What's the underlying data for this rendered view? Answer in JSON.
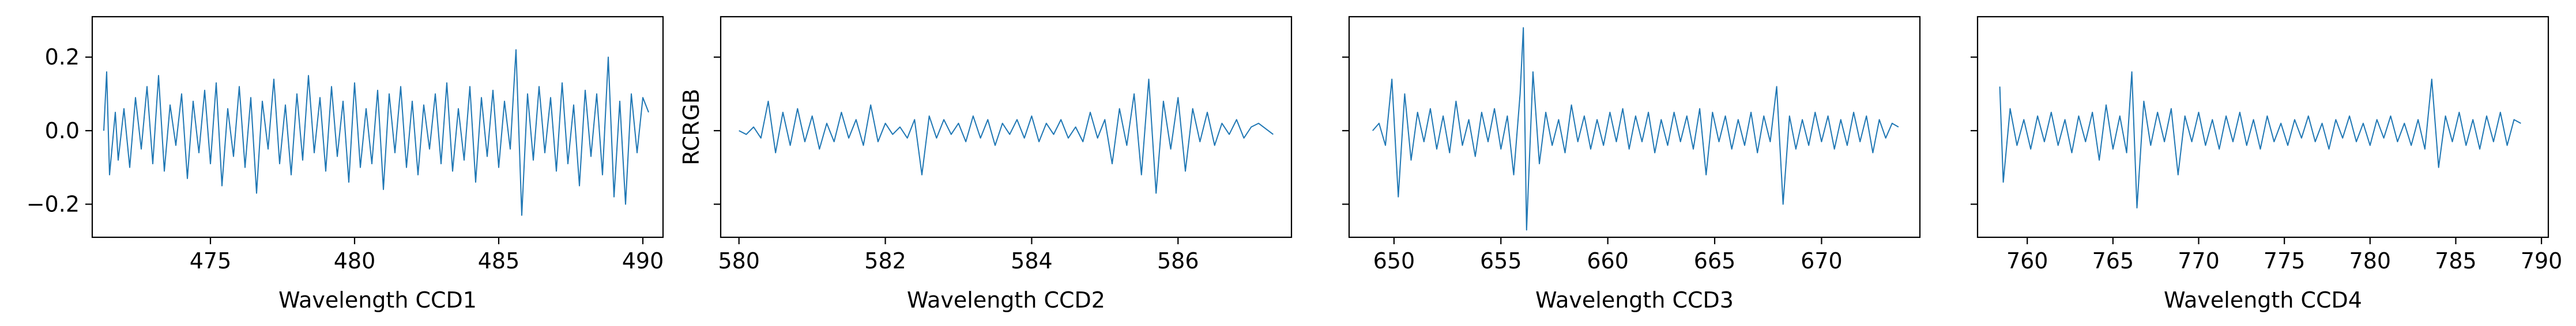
{
  "chart_data": [
    {
      "type": "line",
      "xlabel": "Wavelength CCD1",
      "ylabel": "",
      "xlim": [
        470.9,
        490.7
      ],
      "ylim": [
        -0.29,
        0.31
      ],
      "xticks": [
        475,
        480,
        485,
        490
      ],
      "yticks": [
        -0.2,
        0.0,
        0.2
      ],
      "ytick_labels": [
        "−0.2",
        "0.0",
        "0.2"
      ],
      "show_ytick_labels": true,
      "series_color": "#1f77b4",
      "series": [
        {
          "x": [
            471.3,
            471.4,
            471.5,
            471.7,
            471.8,
            472.0,
            472.2,
            472.4,
            472.6,
            472.8,
            473.0,
            473.2,
            473.4,
            473.6,
            473.8,
            474.0,
            474.2,
            474.4,
            474.6,
            474.8,
            475.0,
            475.2,
            475.4,
            475.6,
            475.8,
            476.0,
            476.2,
            476.4,
            476.6,
            476.8,
            477.0,
            477.2,
            477.4,
            477.6,
            477.8,
            478.0,
            478.2,
            478.4,
            478.6,
            478.8,
            479.0,
            479.2,
            479.4,
            479.6,
            479.8,
            480.0,
            480.2,
            480.4,
            480.6,
            480.8,
            481.0,
            481.2,
            481.4,
            481.6,
            481.8,
            482.0,
            482.2,
            482.4,
            482.6,
            482.8,
            483.0,
            483.2,
            483.4,
            483.6,
            483.8,
            484.0,
            484.2,
            484.4,
            484.6,
            484.8,
            485.0,
            485.2,
            485.4,
            485.6,
            485.8,
            486.0,
            486.2,
            486.4,
            486.6,
            486.8,
            487.0,
            487.2,
            487.4,
            487.6,
            487.8,
            488.0,
            488.2,
            488.4,
            488.6,
            488.8,
            489.0,
            489.2,
            489.4,
            489.6,
            489.8,
            490.0,
            490.2
          ],
          "y": [
            0.0,
            0.16,
            -0.12,
            0.05,
            -0.08,
            0.06,
            -0.1,
            0.09,
            -0.05,
            0.12,
            -0.09,
            0.15,
            -0.11,
            0.07,
            -0.04,
            0.1,
            -0.13,
            0.08,
            -0.06,
            0.11,
            -0.09,
            0.13,
            -0.15,
            0.06,
            -0.07,
            0.12,
            -0.1,
            0.09,
            -0.17,
            0.08,
            -0.05,
            0.14,
            -0.09,
            0.07,
            -0.12,
            0.1,
            -0.08,
            0.15,
            -0.06,
            0.09,
            -0.11,
            0.12,
            -0.07,
            0.08,
            -0.14,
            0.13,
            -0.1,
            0.06,
            -0.09,
            0.11,
            -0.16,
            0.1,
            -0.06,
            0.12,
            -0.1,
            0.08,
            -0.12,
            0.07,
            -0.05,
            0.1,
            -0.09,
            0.13,
            -0.11,
            0.06,
            -0.08,
            0.12,
            -0.14,
            0.09,
            -0.07,
            0.11,
            -0.1,
            0.08,
            -0.05,
            0.22,
            -0.23,
            0.1,
            -0.08,
            0.12,
            -0.06,
            0.09,
            -0.11,
            0.13,
            -0.09,
            0.07,
            -0.15,
            0.11,
            -0.07,
            0.1,
            -0.12,
            0.2,
            -0.18,
            0.08,
            -0.2,
            0.1,
            -0.06,
            0.09,
            0.05
          ]
        }
      ]
    },
    {
      "type": "line",
      "xlabel": "Wavelength CCD2",
      "ylabel": "RCRGB",
      "xlim": [
        579.75,
        587.55
      ],
      "ylim": [
        -0.29,
        0.31
      ],
      "xticks": [
        580,
        582,
        584,
        586
      ],
      "yticks": [
        -0.2,
        0.0,
        0.2
      ],
      "ytick_labels": [
        "−0.2",
        "0.0",
        "0.2"
      ],
      "show_ytick_labels": false,
      "series_color": "#1f77b4",
      "series": [
        {
          "x": [
            580.0,
            580.1,
            580.2,
            580.3,
            580.4,
            580.5,
            580.6,
            580.7,
            580.8,
            580.9,
            581.0,
            581.1,
            581.2,
            581.3,
            581.4,
            581.5,
            581.6,
            581.7,
            581.8,
            581.9,
            582.0,
            582.1,
            582.2,
            582.3,
            582.4,
            582.5,
            582.6,
            582.7,
            582.8,
            582.9,
            583.0,
            583.1,
            583.2,
            583.3,
            583.4,
            583.5,
            583.6,
            583.7,
            583.8,
            583.9,
            584.0,
            584.1,
            584.2,
            584.3,
            584.4,
            584.5,
            584.6,
            584.7,
            584.8,
            584.9,
            585.0,
            585.1,
            585.2,
            585.3,
            585.4,
            585.5,
            585.6,
            585.7,
            585.8,
            585.9,
            586.0,
            586.1,
            586.2,
            586.3,
            586.4,
            586.5,
            586.6,
            586.7,
            586.8,
            586.9,
            587.0,
            587.1,
            587.3
          ],
          "y": [
            0.0,
            -0.01,
            0.01,
            -0.02,
            0.08,
            -0.06,
            0.05,
            -0.04,
            0.06,
            -0.03,
            0.04,
            -0.05,
            0.02,
            -0.03,
            0.05,
            -0.02,
            0.03,
            -0.04,
            0.07,
            -0.03,
            0.02,
            -0.01,
            0.01,
            -0.02,
            0.03,
            -0.12,
            0.04,
            -0.02,
            0.03,
            -0.01,
            0.02,
            -0.03,
            0.04,
            -0.02,
            0.03,
            -0.04,
            0.02,
            -0.01,
            0.03,
            -0.02,
            0.04,
            -0.03,
            0.02,
            -0.01,
            0.03,
            -0.02,
            0.01,
            -0.03,
            0.05,
            -0.02,
            0.03,
            -0.09,
            0.06,
            -0.04,
            0.1,
            -0.12,
            0.14,
            -0.17,
            0.08,
            -0.05,
            0.09,
            -0.11,
            0.06,
            -0.03,
            0.05,
            -0.04,
            0.02,
            -0.01,
            0.03,
            -0.02,
            0.01,
            0.02,
            -0.01
          ]
        }
      ]
    },
    {
      "type": "line",
      "xlabel": "Wavelength CCD3",
      "ylabel": "",
      "xlim": [
        647.9,
        674.6
      ],
      "ylim": [
        -0.29,
        0.31
      ],
      "xticks": [
        650,
        655,
        660,
        665,
        670
      ],
      "yticks": [
        -0.2,
        0.0,
        0.2
      ],
      "ytick_labels": [
        "−0.2",
        "0.0",
        "0.2"
      ],
      "show_ytick_labels": false,
      "series_color": "#1f77b4",
      "series": [
        {
          "x": [
            649.0,
            649.3,
            649.6,
            649.9,
            650.2,
            650.5,
            650.8,
            651.1,
            651.4,
            651.7,
            652.0,
            652.3,
            652.6,
            652.9,
            653.2,
            653.5,
            653.8,
            654.1,
            654.4,
            654.7,
            655.0,
            655.3,
            655.6,
            655.9,
            656.05,
            656.2,
            656.5,
            656.8,
            657.1,
            657.4,
            657.7,
            658.0,
            658.3,
            658.6,
            658.9,
            659.2,
            659.5,
            659.8,
            660.1,
            660.4,
            660.7,
            661.0,
            661.3,
            661.6,
            661.9,
            662.2,
            662.5,
            662.8,
            663.1,
            663.4,
            663.7,
            664.0,
            664.3,
            664.6,
            664.9,
            665.2,
            665.5,
            665.8,
            666.1,
            666.4,
            666.7,
            667.0,
            667.3,
            667.6,
            667.9,
            668.2,
            668.5,
            668.8,
            669.1,
            669.4,
            669.7,
            670.0,
            670.3,
            670.6,
            670.9,
            671.2,
            671.5,
            671.8,
            672.1,
            672.4,
            672.7,
            673.0,
            673.3,
            673.6
          ],
          "y": [
            0.0,
            0.02,
            -0.04,
            0.14,
            -0.18,
            0.1,
            -0.08,
            0.05,
            -0.03,
            0.06,
            -0.05,
            0.04,
            -0.06,
            0.08,
            -0.04,
            0.03,
            -0.07,
            0.05,
            -0.03,
            0.06,
            -0.05,
            0.04,
            -0.12,
            0.1,
            0.28,
            -0.27,
            0.16,
            -0.09,
            0.05,
            -0.04,
            0.03,
            -0.06,
            0.07,
            -0.03,
            0.04,
            -0.05,
            0.03,
            -0.04,
            0.05,
            -0.03,
            0.06,
            -0.05,
            0.04,
            -0.03,
            0.05,
            -0.06,
            0.03,
            -0.04,
            0.05,
            -0.03,
            0.04,
            -0.05,
            0.06,
            -0.12,
            0.05,
            -0.03,
            0.04,
            -0.05,
            0.03,
            -0.04,
            0.05,
            -0.06,
            0.04,
            -0.03,
            0.12,
            -0.2,
            0.04,
            -0.05,
            0.03,
            -0.04,
            0.05,
            -0.03,
            0.04,
            -0.05,
            0.03,
            -0.04,
            0.05,
            -0.03,
            0.04,
            -0.06,
            0.03,
            -0.02,
            0.02,
            0.01
          ]
        }
      ]
    },
    {
      "type": "line",
      "xlabel": "Wavelength CCD4",
      "ylabel": "",
      "xlim": [
        757.1,
        790.4
      ],
      "ylim": [
        -0.29,
        0.31
      ],
      "xticks": [
        760,
        765,
        770,
        775,
        780,
        785,
        790
      ],
      "yticks": [
        -0.2,
        0.0,
        0.2
      ],
      "ytick_labels": [
        "−0.2",
        "0.0",
        "0.2"
      ],
      "show_ytick_labels": false,
      "series_color": "#1f77b4",
      "series": [
        {
          "x": [
            758.4,
            758.6,
            759.0,
            759.4,
            759.8,
            760.2,
            760.6,
            761.0,
            761.4,
            761.8,
            762.2,
            762.6,
            763.0,
            763.4,
            763.8,
            764.2,
            764.6,
            765.0,
            765.4,
            765.8,
            766.1,
            766.4,
            766.8,
            767.2,
            767.6,
            768.0,
            768.4,
            768.8,
            769.2,
            769.6,
            770.0,
            770.4,
            770.8,
            771.2,
            771.6,
            772.0,
            772.4,
            772.8,
            773.2,
            773.6,
            774.0,
            774.4,
            774.8,
            775.2,
            775.6,
            776.0,
            776.4,
            776.8,
            777.2,
            777.6,
            778.0,
            778.4,
            778.8,
            779.2,
            779.6,
            780.0,
            780.4,
            780.8,
            781.2,
            781.6,
            782.0,
            782.4,
            782.8,
            783.2,
            783.6,
            784.0,
            784.4,
            784.8,
            785.2,
            785.6,
            786.0,
            786.4,
            786.8,
            787.2,
            787.6,
            788.0,
            788.4,
            788.8
          ],
          "y": [
            0.12,
            -0.14,
            0.06,
            -0.04,
            0.03,
            -0.05,
            0.04,
            -0.03,
            0.05,
            -0.04,
            0.03,
            -0.06,
            0.04,
            -0.03,
            0.05,
            -0.08,
            0.07,
            -0.05,
            0.04,
            -0.06,
            0.16,
            -0.21,
            0.08,
            -0.04,
            0.05,
            -0.03,
            0.06,
            -0.12,
            0.04,
            -0.03,
            0.05,
            -0.04,
            0.03,
            -0.05,
            0.04,
            -0.03,
            0.05,
            -0.04,
            0.03,
            -0.05,
            0.04,
            -0.03,
            0.02,
            -0.04,
            0.03,
            -0.02,
            0.04,
            -0.03,
            0.02,
            -0.05,
            0.03,
            -0.02,
            0.04,
            -0.03,
            0.02,
            -0.04,
            0.03,
            -0.02,
            0.04,
            -0.03,
            0.02,
            -0.04,
            0.03,
            -0.05,
            0.14,
            -0.1,
            0.04,
            -0.03,
            0.05,
            -0.04,
            0.03,
            -0.05,
            0.04,
            -0.03,
            0.05,
            -0.04,
            0.03,
            0.02
          ]
        }
      ]
    }
  ]
}
